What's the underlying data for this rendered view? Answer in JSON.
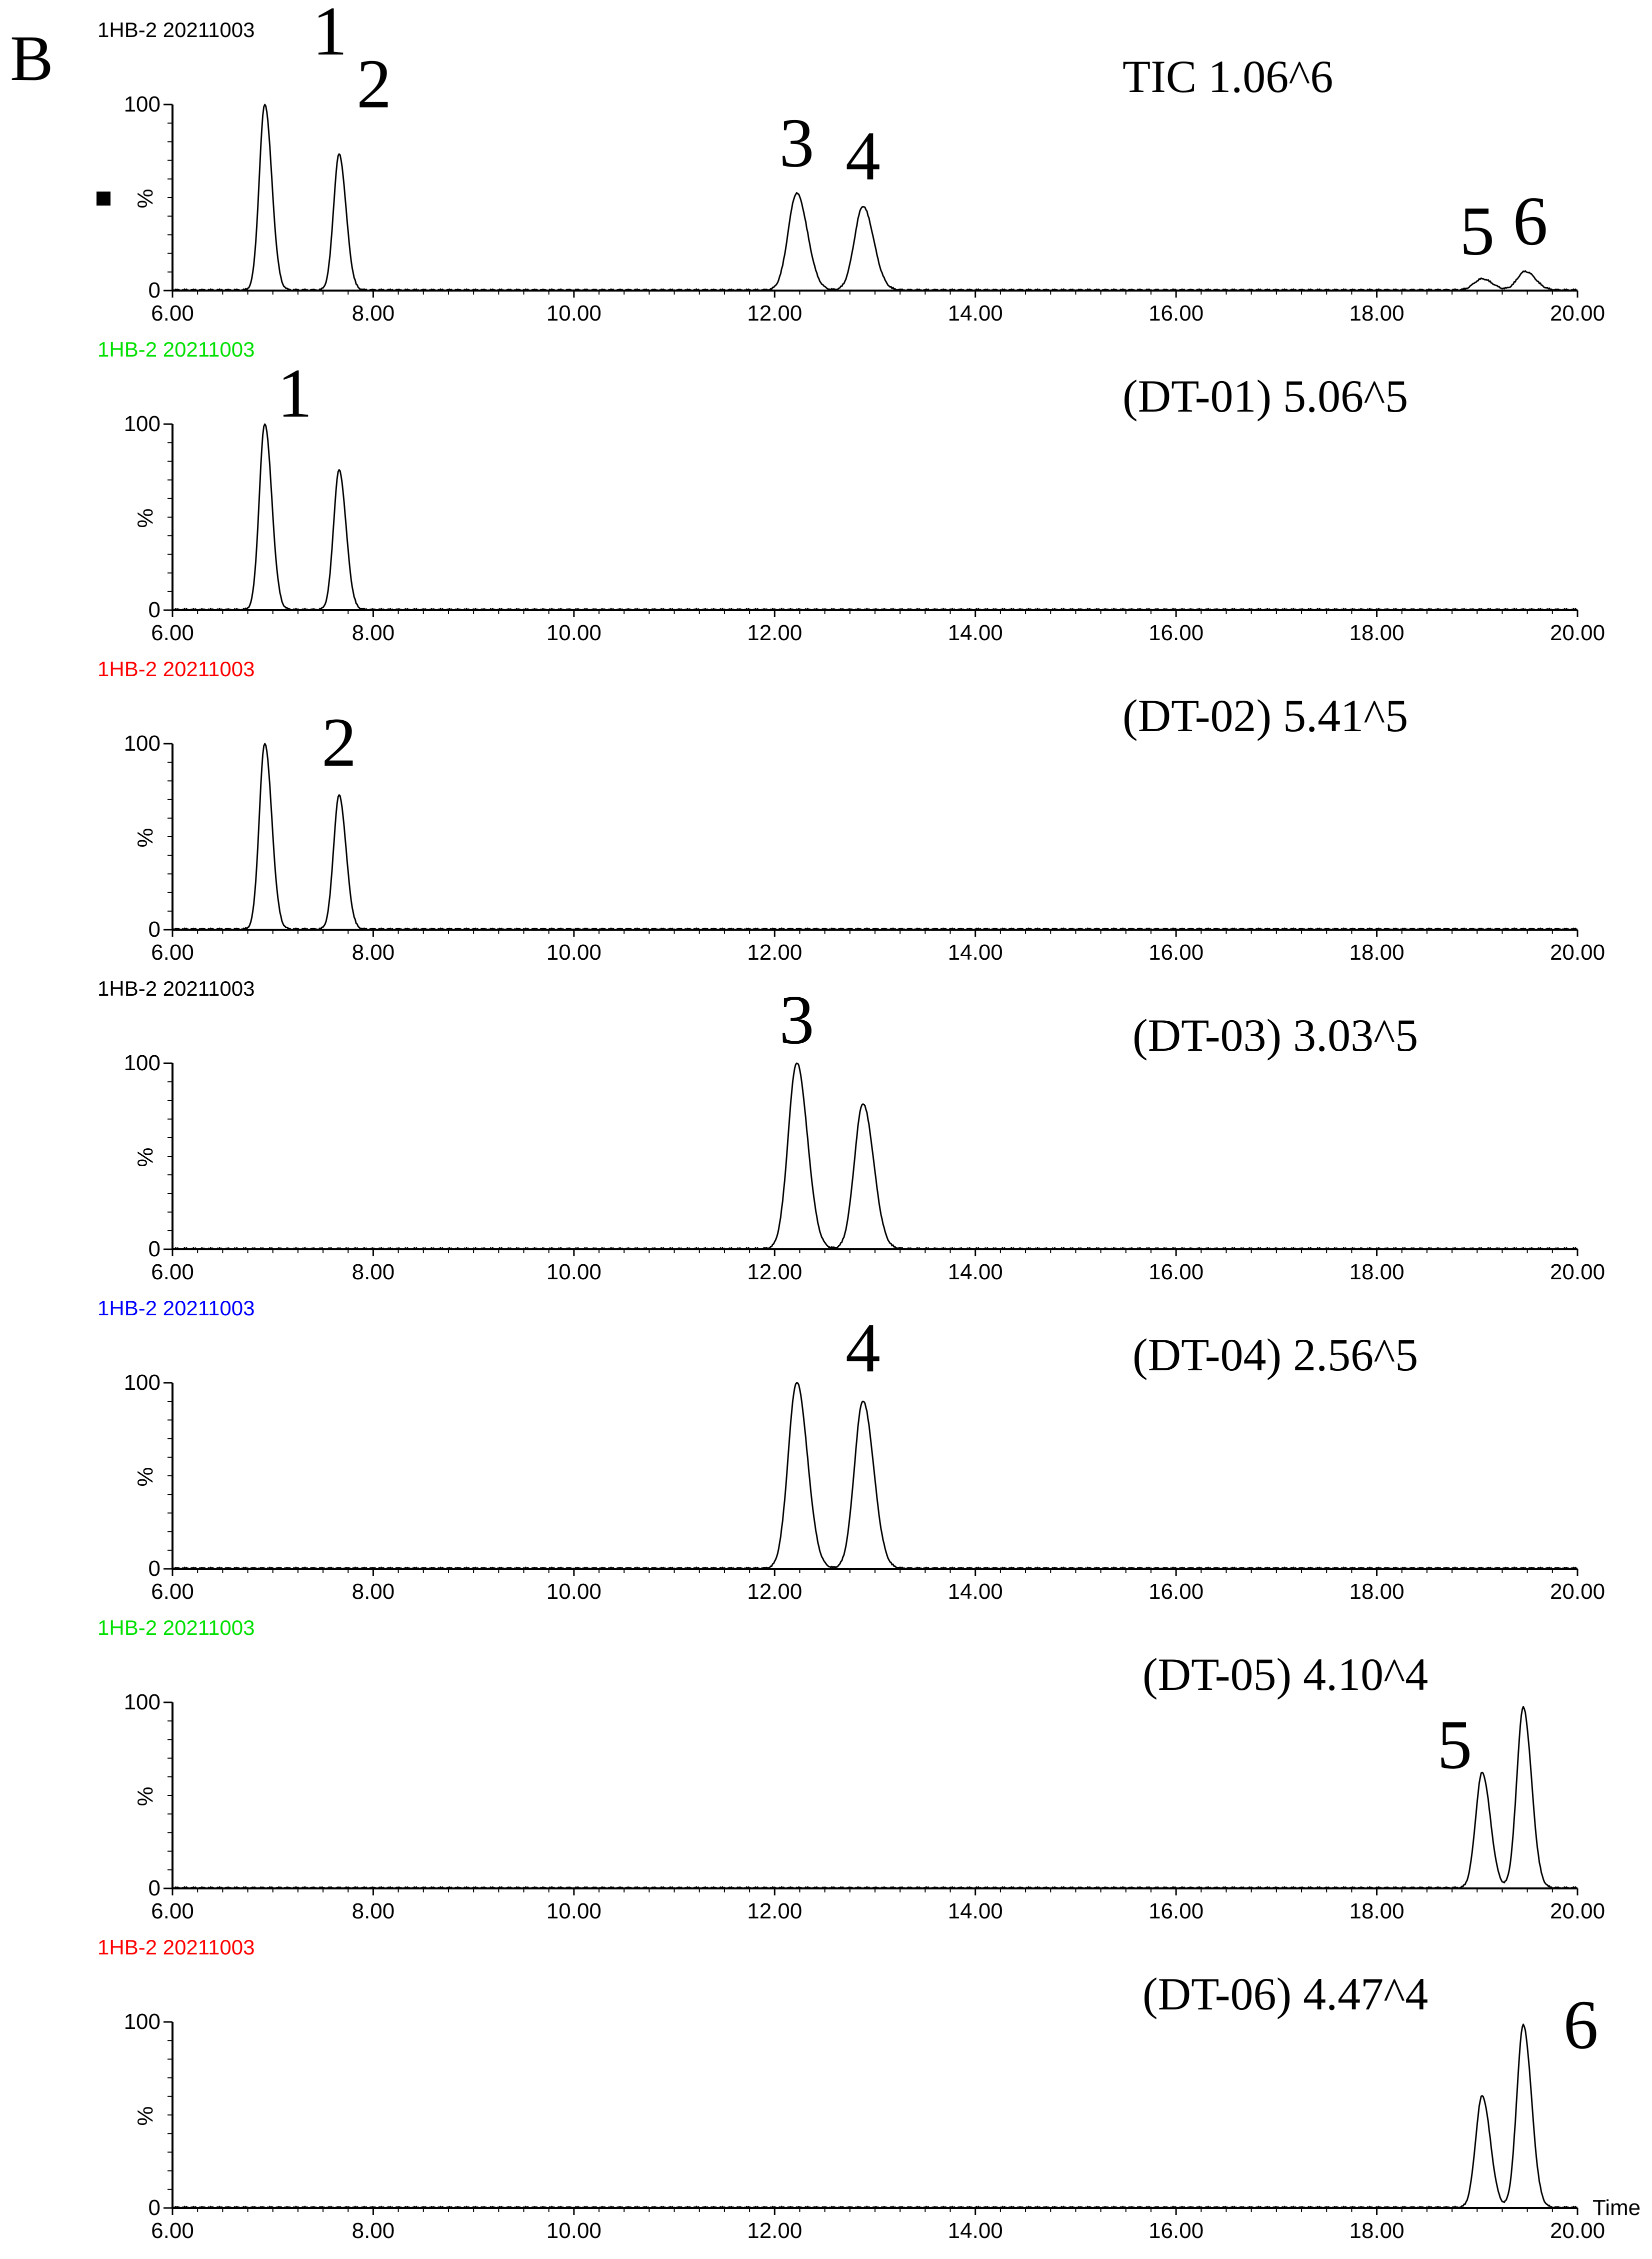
{
  "figure_label": "B",
  "marker_icon": "square-marker-icon",
  "time_label": "Time",
  "chart_data": [
    {
      "type": "line",
      "sample": "1HB-2 20211003",
      "sample_color": "#000000",
      "channel": "TIC 1.06^6",
      "xlim": [
        6.0,
        20.0
      ],
      "ylim": [
        0,
        100
      ],
      "x_ticks": [
        "6.00",
        "8.00",
        "10.00",
        "12.00",
        "14.00",
        "16.00",
        "18.00",
        "20.00"
      ],
      "y_ticks": [
        "0",
        "%",
        "100"
      ],
      "peaks": [
        {
          "x": 6.92,
          "y": 100,
          "w": 0.055,
          "label": "1"
        },
        {
          "x": 7.66,
          "y": 73,
          "w": 0.055,
          "label": "2"
        },
        {
          "x": 12.22,
          "y": 52,
          "w": 0.085,
          "label": "3"
        },
        {
          "x": 12.88,
          "y": 45,
          "w": 0.085,
          "label": "4"
        },
        {
          "x": 19.05,
          "y": 6,
          "w": 0.08,
          "label": "5"
        },
        {
          "x": 19.48,
          "y": 10,
          "w": 0.08,
          "label": "6"
        }
      ]
    },
    {
      "type": "line",
      "sample": "1HB-2 20211003",
      "sample_color": "#00e000",
      "channel": "(DT-01) 5.06^5",
      "xlim": [
        6.0,
        20.0
      ],
      "ylim": [
        0,
        100
      ],
      "x_ticks": [
        "6.00",
        "8.00",
        "10.00",
        "12.00",
        "14.00",
        "16.00",
        "18.00",
        "20.00"
      ],
      "y_ticks": [
        "0",
        "%",
        "100"
      ],
      "peaks": [
        {
          "x": 6.92,
          "y": 100,
          "w": 0.055,
          "label": "1"
        },
        {
          "x": 7.66,
          "y": 75,
          "w": 0.055,
          "label": ""
        }
      ]
    },
    {
      "type": "line",
      "sample": "1HB-2 20211003",
      "sample_color": "#ff0000",
      "channel": "(DT-02) 5.41^5",
      "xlim": [
        6.0,
        20.0
      ],
      "ylim": [
        0,
        100
      ],
      "x_ticks": [
        "6.00",
        "8.00",
        "10.00",
        "12.00",
        "14.00",
        "16.00",
        "18.00",
        "20.00"
      ],
      "y_ticks": [
        "0",
        "%",
        "100"
      ],
      "peaks": [
        {
          "x": 6.92,
          "y": 100,
          "w": 0.055,
          "label": ""
        },
        {
          "x": 7.66,
          "y": 72,
          "w": 0.055,
          "label": "2"
        }
      ]
    },
    {
      "type": "line",
      "sample": "1HB-2 20211003",
      "sample_color": "#000000",
      "channel": "(DT-03) 3.03^5",
      "xlim": [
        6.0,
        20.0
      ],
      "ylim": [
        0,
        100
      ],
      "x_ticks": [
        "6.00",
        "8.00",
        "10.00",
        "12.00",
        "14.00",
        "16.00",
        "18.00",
        "20.00"
      ],
      "y_ticks": [
        "0",
        "%",
        "100"
      ],
      "peaks": [
        {
          "x": 12.22,
          "y": 100,
          "w": 0.085,
          "label": "3"
        },
        {
          "x": 12.88,
          "y": 78,
          "w": 0.085,
          "label": ""
        }
      ]
    },
    {
      "type": "line",
      "sample": "1HB-2 20211003",
      "sample_color": "#0000ff",
      "channel": "(DT-04) 2.56^5",
      "xlim": [
        6.0,
        20.0
      ],
      "ylim": [
        0,
        100
      ],
      "x_ticks": [
        "6.00",
        "8.00",
        "10.00",
        "12.00",
        "14.00",
        "16.00",
        "18.00",
        "20.00"
      ],
      "y_ticks": [
        "0",
        "%",
        "100"
      ],
      "peaks": [
        {
          "x": 12.22,
          "y": 100,
          "w": 0.085,
          "label": ""
        },
        {
          "x": 12.88,
          "y": 90,
          "w": 0.085,
          "label": "4"
        }
      ]
    },
    {
      "type": "line",
      "sample": "1HB-2 20211003",
      "sample_color": "#00e000",
      "channel": "(DT-05) 4.10^4",
      "xlim": [
        6.0,
        20.0
      ],
      "ylim": [
        0,
        100
      ],
      "x_ticks": [
        "6.00",
        "8.00",
        "10.00",
        "12.00",
        "14.00",
        "16.00",
        "18.00",
        "20.00"
      ],
      "y_ticks": [
        "0",
        "%",
        "100"
      ],
      "peaks": [
        {
          "x": 19.05,
          "y": 62,
          "w": 0.065,
          "label": "5"
        },
        {
          "x": 19.46,
          "y": 97,
          "w": 0.065,
          "label": ""
        }
      ]
    },
    {
      "type": "line",
      "sample": "1HB-2 20211003",
      "sample_color": "#ff0000",
      "channel": "(DT-06) 4.47^4",
      "xlim": [
        6.0,
        20.0
      ],
      "ylim": [
        0,
        100
      ],
      "x_ticks": [
        "6.00",
        "8.00",
        "10.00",
        "12.00",
        "14.00",
        "16.00",
        "18.00",
        "20.00"
      ],
      "y_ticks": [
        "0",
        "%",
        "100"
      ],
      "peaks": [
        {
          "x": 19.05,
          "y": 60,
          "w": 0.065,
          "label": ""
        },
        {
          "x": 19.46,
          "y": 98,
          "w": 0.065,
          "label": "6"
        }
      ]
    }
  ]
}
